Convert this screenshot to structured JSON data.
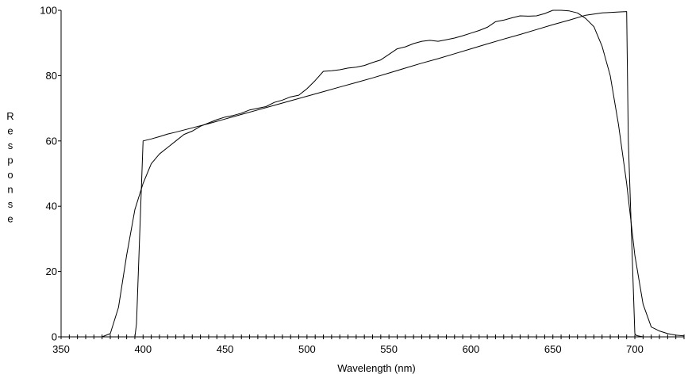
{
  "chart_data": {
    "type": "line",
    "title": "",
    "xlabel": "Wavelength (nm)",
    "ylabel": "Response",
    "xlim": [
      350,
      730
    ],
    "ylim": [
      0,
      100
    ],
    "x_ticks": [
      350,
      400,
      450,
      500,
      550,
      600,
      650,
      700
    ],
    "y_ticks": [
      0,
      20,
      40,
      60,
      80,
      100
    ],
    "x_minor_step": 5,
    "grid": false,
    "legend": "none",
    "colors": {
      "line": "#000000",
      "axis": "#000000"
    },
    "series": [
      {
        "x": [
          395,
          396,
          400,
          405,
          410,
          415,
          420,
          430,
          440,
          450,
          460,
          470,
          480,
          490,
          500,
          510,
          520,
          530,
          540,
          550,
          560,
          570,
          580,
          590,
          600,
          610,
          620,
          630,
          640,
          650,
          660,
          670,
          680,
          690,
          695,
          696,
          700,
          701,
          705,
          730
        ],
        "y": [
          0,
          4,
          60,
          60.6,
          61.3,
          62.1,
          62.7,
          64,
          65.3,
          66.7,
          68.1,
          69.5,
          70.9,
          72.3,
          73.7,
          75.1,
          76.5,
          77.9,
          79.3,
          80.8,
          82.3,
          83.8,
          85.2,
          86.7,
          88.2,
          89.7,
          91.2,
          92.6,
          94.1,
          95.6,
          97,
          98.5,
          99.2,
          99.5,
          99.6,
          60,
          1,
          0.4,
          0,
          0
        ]
      },
      {
        "x": [
          350,
          375,
          380,
          385,
          390,
          395,
          400,
          405,
          410,
          415,
          420,
          425,
          430,
          435,
          440,
          445,
          450,
          455,
          460,
          465,
          470,
          475,
          480,
          485,
          490,
          495,
          500,
          505,
          510,
          515,
          520,
          525,
          530,
          535,
          540,
          545,
          550,
          555,
          560,
          565,
          570,
          575,
          580,
          585,
          590,
          595,
          600,
          605,
          610,
          615,
          620,
          625,
          630,
          635,
          640,
          645,
          650,
          655,
          660,
          665,
          670,
          675,
          680,
          685,
          690,
          695,
          700,
          705,
          710,
          715,
          720,
          725,
          730
        ],
        "y": [
          0,
          0,
          1,
          9,
          25,
          39,
          47,
          53,
          56,
          58,
          60,
          62,
          63,
          64.5,
          65.5,
          66.5,
          67.3,
          67.8,
          68.5,
          69.5,
          70,
          70.5,
          71.8,
          72.5,
          73.5,
          74,
          76,
          78.5,
          81.3,
          81.5,
          81.8,
          82.3,
          82.6,
          83.1,
          84,
          84.8,
          86.5,
          88.2,
          88.8,
          89.8,
          90.5,
          90.8,
          90.5,
          91,
          91.5,
          92.2,
          93,
          93.8,
          94.8,
          96.5,
          97,
          97.7,
          98.3,
          98.2,
          98.3,
          99,
          100,
          100,
          99.8,
          99.2,
          97.5,
          95,
          89,
          80,
          65,
          47,
          25,
          10,
          3,
          1.8,
          1,
          0.5,
          0.3
        ]
      }
    ]
  }
}
